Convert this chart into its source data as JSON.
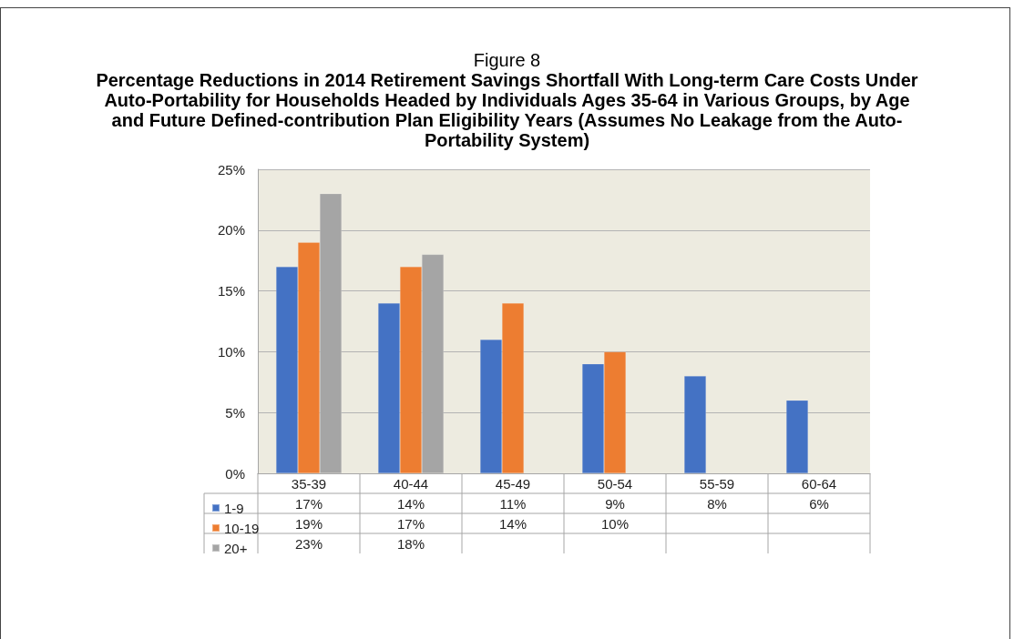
{
  "chart_data": {
    "type": "bar",
    "title": "Figure 8",
    "subtitle": "Percentage Reductions in 2014 Retirement Savings Shortfall With Long-term Care Costs Under Auto-Portability for Households Headed by Individuals Ages 35-64 in Various Groups, by Age and Future Defined-contribution Plan Eligibility Years (Assumes No Leakage from the Auto-Portability System)",
    "categories": [
      "35-39",
      "40-44",
      "45-49",
      "50-54",
      "55-59",
      "60-64"
    ],
    "series": [
      {
        "name": "1-9",
        "color": "#4472c4",
        "values": [
          17,
          14,
          11,
          9,
          8,
          6
        ],
        "value_labels": [
          "17%",
          "14%",
          "11%",
          "9%",
          "8%",
          "6%"
        ]
      },
      {
        "name": "10-19",
        "color": "#ed7d31",
        "values": [
          19,
          17,
          14,
          10,
          null,
          null
        ],
        "value_labels": [
          "19%",
          "17%",
          "14%",
          "10%",
          null,
          null
        ]
      },
      {
        "name": "20+",
        "color": "#a5a5a5",
        "values": [
          23,
          18,
          null,
          null,
          null,
          null
        ],
        "value_labels": [
          "23%",
          "18%",
          null,
          null,
          null,
          null
        ]
      }
    ],
    "ylim": [
      0,
      25
    ],
    "yticks": [
      {
        "value": 0,
        "label": "0%"
      },
      {
        "value": 5,
        "label": "5%"
      },
      {
        "value": 10,
        "label": "10%"
      },
      {
        "value": 15,
        "label": "15%"
      },
      {
        "value": 20,
        "label": "20%"
      },
      {
        "value": 25,
        "label": "25%"
      }
    ],
    "grid": "y",
    "legend": "bottom left"
  }
}
